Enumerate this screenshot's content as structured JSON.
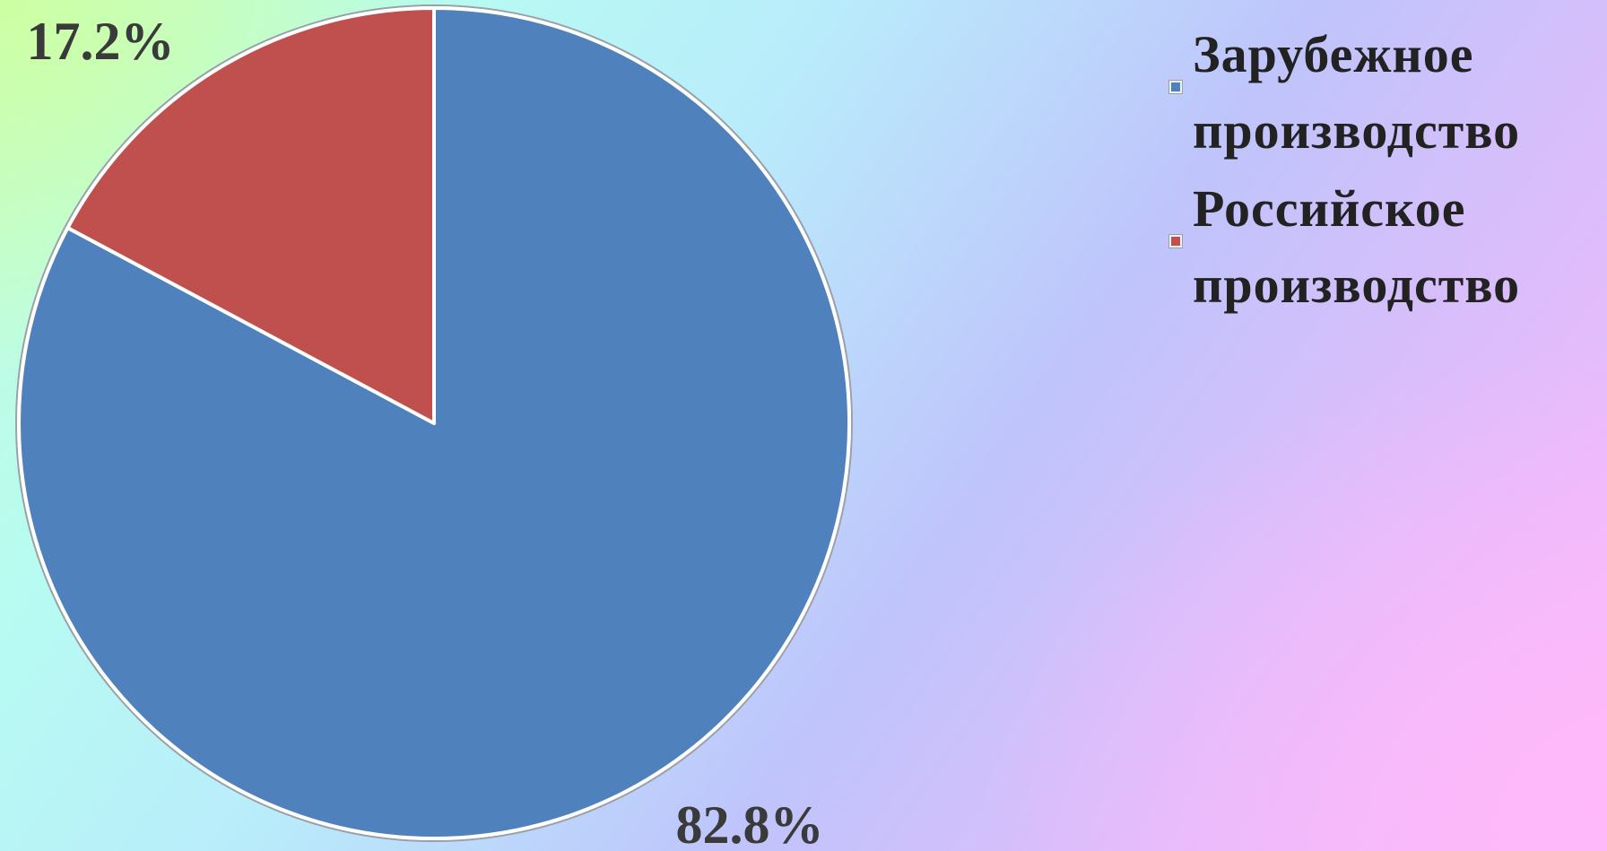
{
  "chart_data": {
    "type": "pie",
    "title": "",
    "categories": [
      "Зарубежное производство",
      "Российское производство"
    ],
    "values": [
      82.8,
      17.2
    ],
    "value_labels": [
      "82.8%",
      "17.2%"
    ],
    "colors": [
      "#4f81bd",
      "#c0504d"
    ],
    "start": "12 o'clock, clockwise",
    "legend": {
      "position": "top-right",
      "entries": [
        "Зарубежное производство",
        "Российское производство"
      ]
    }
  }
}
